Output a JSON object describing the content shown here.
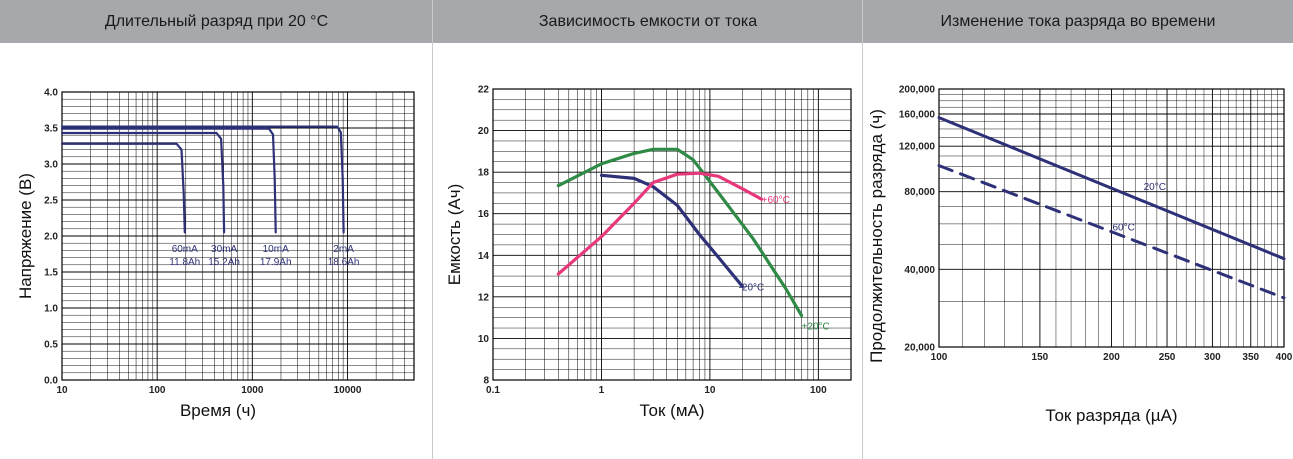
{
  "header": {
    "col1": "Длительный разряд при 20 °С",
    "col2": "Зависимость емкости от тока",
    "col3": "Изменение тока разряда во времени"
  },
  "colors": {
    "navy": "#2e3177",
    "green": "#2f8a45",
    "pink": "#e8387c",
    "header_bg": "#a6a8ab"
  },
  "chart_data": [
    {
      "type": "line",
      "title": "Длительный разряд при 20 °С",
      "xlabel": "Время (ч)",
      "ylabel": "Напряжение (В)",
      "xscale": "log",
      "xlim": [
        10,
        50000
      ],
      "ylim": [
        0,
        4.0
      ],
      "xticks": [
        "10",
        "100",
        "1000",
        "10000"
      ],
      "yticks": [
        "0.0",
        "0.5",
        "1.0",
        "1.5",
        "2.0",
        "2.5",
        "3.0",
        "3.5",
        "4.0"
      ],
      "grid": true,
      "series": [
        {
          "name": "60mA",
          "capacity": "11.8Ah",
          "color": "#2e3177",
          "x": [
            10,
            160,
            180,
            190,
            195
          ],
          "y": [
            3.28,
            3.28,
            3.2,
            2.6,
            2.05
          ]
        },
        {
          "name": "30mA",
          "capacity": "15.2Ah",
          "color": "#2e3177",
          "x": [
            10,
            420,
            470,
            495,
            505
          ],
          "y": [
            3.43,
            3.43,
            3.35,
            2.7,
            2.05
          ]
        },
        {
          "name": "10mA",
          "capacity": "17.9Ah",
          "color": "#2e3177",
          "x": [
            10,
            1500,
            1650,
            1720,
            1760
          ],
          "y": [
            3.49,
            3.49,
            3.41,
            2.8,
            2.05
          ]
        },
        {
          "name": "2mA",
          "capacity": "18.6Ah",
          "color": "#2e3177",
          "x": [
            10,
            7800,
            8500,
            8900,
            9100
          ],
          "y": [
            3.52,
            3.52,
            3.44,
            2.8,
            2.05
          ]
        }
      ]
    },
    {
      "type": "line",
      "title": "Зависимость емкости от тока",
      "xlabel": "Ток (мА)",
      "ylabel": "Емкость (Ач)",
      "xscale": "log",
      "xlim": [
        0.1,
        200
      ],
      "ylim": [
        8,
        22
      ],
      "xticks": [
        "0.1",
        "1",
        "10",
        "100"
      ],
      "yticks": [
        "8",
        "10",
        "12",
        "14",
        "16",
        "18",
        "20",
        "22"
      ],
      "grid": true,
      "series": [
        {
          "name": "-20°C",
          "color": "#2e3177",
          "x": [
            1,
            2,
            3,
            5,
            8,
            12,
            20
          ],
          "y": [
            17.85,
            17.7,
            17.3,
            16.4,
            15.0,
            13.9,
            12.5
          ]
        },
        {
          "name": "+20°C",
          "color": "#2f8a45",
          "x": [
            0.4,
            1,
            2,
            3,
            5,
            7,
            12,
            25,
            50,
            70
          ],
          "y": [
            17.35,
            18.4,
            18.9,
            19.1,
            19.1,
            18.6,
            17.0,
            14.8,
            12.4,
            11.1
          ]
        },
        {
          "name": "+60°C",
          "color": "#e8387c",
          "x": [
            0.4,
            1,
            2,
            3,
            5,
            8,
            12,
            20,
            30
          ],
          "y": [
            13.1,
            14.9,
            16.5,
            17.5,
            17.9,
            17.95,
            17.8,
            17.2,
            16.7
          ]
        }
      ]
    },
    {
      "type": "line",
      "title": "Изменение тока разряда во времени",
      "xlabel": "Ток разряда (µA)",
      "ylabel": "Продолжительность разряда (ч)",
      "xscale": "log",
      "yscale": "log",
      "xlim": [
        100,
        400
      ],
      "ylim": [
        20000,
        200000
      ],
      "xticks": [
        "100",
        "150",
        "200",
        "250",
        "300",
        "350",
        "400"
      ],
      "yticks": [
        "20,000",
        "40,000",
        "80,000",
        "120,000",
        "160,000",
        "200,000"
      ],
      "grid": true,
      "series": [
        {
          "name": "20°C",
          "color": "#2e3177",
          "style": "solid",
          "x": [
            100,
            400
          ],
          "y": [
            155000,
            44000
          ]
        },
        {
          "name": "60°C",
          "color": "#2e3177",
          "style": "dashed",
          "x": [
            100,
            400
          ],
          "y": [
            101000,
            31000
          ]
        }
      ]
    }
  ]
}
